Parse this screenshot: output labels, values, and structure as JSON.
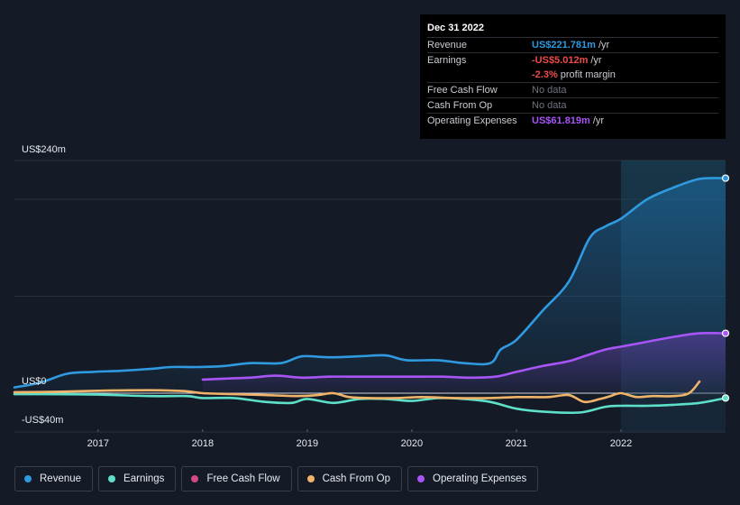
{
  "tooltip": {
    "date": "Dec 31 2022",
    "rows": {
      "revenue": {
        "label": "Revenue",
        "value": "US$221.781m",
        "unit": "/yr",
        "color": "#2f9ae0"
      },
      "earnings": {
        "label": "Earnings",
        "value": "-US$5.012m",
        "unit": "/yr",
        "color": "#ef4b4b"
      },
      "margin": {
        "value": "-2.3%",
        "unit": "profit margin",
        "color": "#ef4b4b"
      },
      "fcf": {
        "label": "Free Cash Flow",
        "value": "No data"
      },
      "cfo": {
        "label": "Cash From Op",
        "value": "No data"
      },
      "opex": {
        "label": "Operating Expenses",
        "value": "US$61.819m",
        "unit": "/yr",
        "color": "#a855f7"
      }
    }
  },
  "axis": {
    "y_top_label": "US$240m",
    "y_zero_label": "US$0",
    "y_bottom_label": "-US$40m"
  },
  "legend": [
    {
      "label": "Revenue",
      "color": "#2f9ae0"
    },
    {
      "label": "Earnings",
      "color": "#5ee0c8"
    },
    {
      "label": "Free Cash Flow",
      "color": "#d14a84"
    },
    {
      "label": "Cash From Op",
      "color": "#f0b36a"
    },
    {
      "label": "Operating Expenses",
      "color": "#a855f7"
    }
  ],
  "chart_data": {
    "type": "line",
    "xlim": [
      2016.2,
      2023.0
    ],
    "ylim": [
      -40,
      240
    ],
    "x_ticks": [
      "2017",
      "2018",
      "2019",
      "2020",
      "2021",
      "2022"
    ],
    "highlight_from": 2022.0,
    "grid": true,
    "legend_position": "bottom",
    "series": [
      {
        "name": "Revenue",
        "color": "#2f9ae0",
        "x": [
          2016.2,
          2016.45,
          2016.7,
          2016.95,
          2017.2,
          2017.5,
          2017.7,
          2017.95,
          2018.2,
          2018.45,
          2018.75,
          2018.95,
          2019.2,
          2019.5,
          2019.75,
          2019.95,
          2020.25,
          2020.5,
          2020.75,
          2020.85,
          2021.0,
          2021.25,
          2021.5,
          2021.7,
          2021.85,
          2022.0,
          2022.25,
          2022.5,
          2022.75,
          2023.0
        ],
        "y": [
          6,
          11,
          20,
          22,
          23,
          25,
          27,
          27,
          28,
          31,
          31,
          38,
          37,
          38,
          39,
          34,
          34,
          31,
          31,
          45,
          55,
          85,
          115,
          160,
          172,
          180,
          200,
          212,
          221,
          221.8
        ]
      },
      {
        "name": "Earnings",
        "color": "#5ee0c8",
        "x": [
          2016.2,
          2016.5,
          2017.0,
          2017.5,
          2017.85,
          2018.0,
          2018.3,
          2018.6,
          2018.85,
          2019.0,
          2019.25,
          2019.5,
          2019.75,
          2020.0,
          2020.25,
          2020.5,
          2020.75,
          2021.0,
          2021.25,
          2021.6,
          2021.85,
          2022.0,
          2022.25,
          2022.5,
          2022.75,
          2023.0
        ],
        "y": [
          -1,
          -1,
          -1.5,
          -3,
          -3,
          -5,
          -5,
          -9,
          -10,
          -6,
          -10,
          -6,
          -6,
          -8,
          -5,
          -6,
          -9,
          -16,
          -19,
          -20,
          -14,
          -13,
          -13,
          -12,
          -10,
          -5
        ]
      },
      {
        "name": "Cash From Op",
        "color": "#f0b36a",
        "x": [
          2016.2,
          2016.6,
          2017.0,
          2017.3,
          2017.6,
          2017.85,
          2018.0,
          2018.3,
          2018.6,
          2018.9,
          2019.1,
          2019.25,
          2019.4,
          2019.6,
          2019.85,
          2020.1,
          2020.4,
          2020.75,
          2021.0,
          2021.3,
          2021.5,
          2021.65,
          2021.8,
          2021.9,
          2022.0,
          2022.15,
          2022.3,
          2022.5,
          2022.65,
          2022.75
        ],
        "y": [
          1,
          1.5,
          2.5,
          3,
          3,
          2,
          0,
          -1,
          -2,
          -3,
          -2,
          0,
          -4,
          -5,
          -5,
          -4,
          -5,
          -5,
          -4,
          -4,
          -2,
          -9,
          -6,
          -3,
          0,
          -4,
          -3,
          -3,
          0,
          12
        ]
      },
      {
        "name": "Operating Expenses",
        "color": "#a855f7",
        "x": [
          2018.0,
          2018.2,
          2018.45,
          2018.7,
          2018.95,
          2019.2,
          2019.5,
          2019.75,
          2020.0,
          2020.3,
          2020.55,
          2020.8,
          2021.0,
          2021.25,
          2021.5,
          2021.7,
          2021.85,
          2022.0,
          2022.25,
          2022.5,
          2022.75,
          2023.0
        ],
        "y": [
          14,
          15,
          16,
          18,
          16,
          17,
          17,
          17,
          17,
          17,
          16,
          17,
          22,
          28,
          33,
          40,
          45,
          48,
          53,
          58,
          61.8,
          61.8
        ]
      }
    ]
  }
}
